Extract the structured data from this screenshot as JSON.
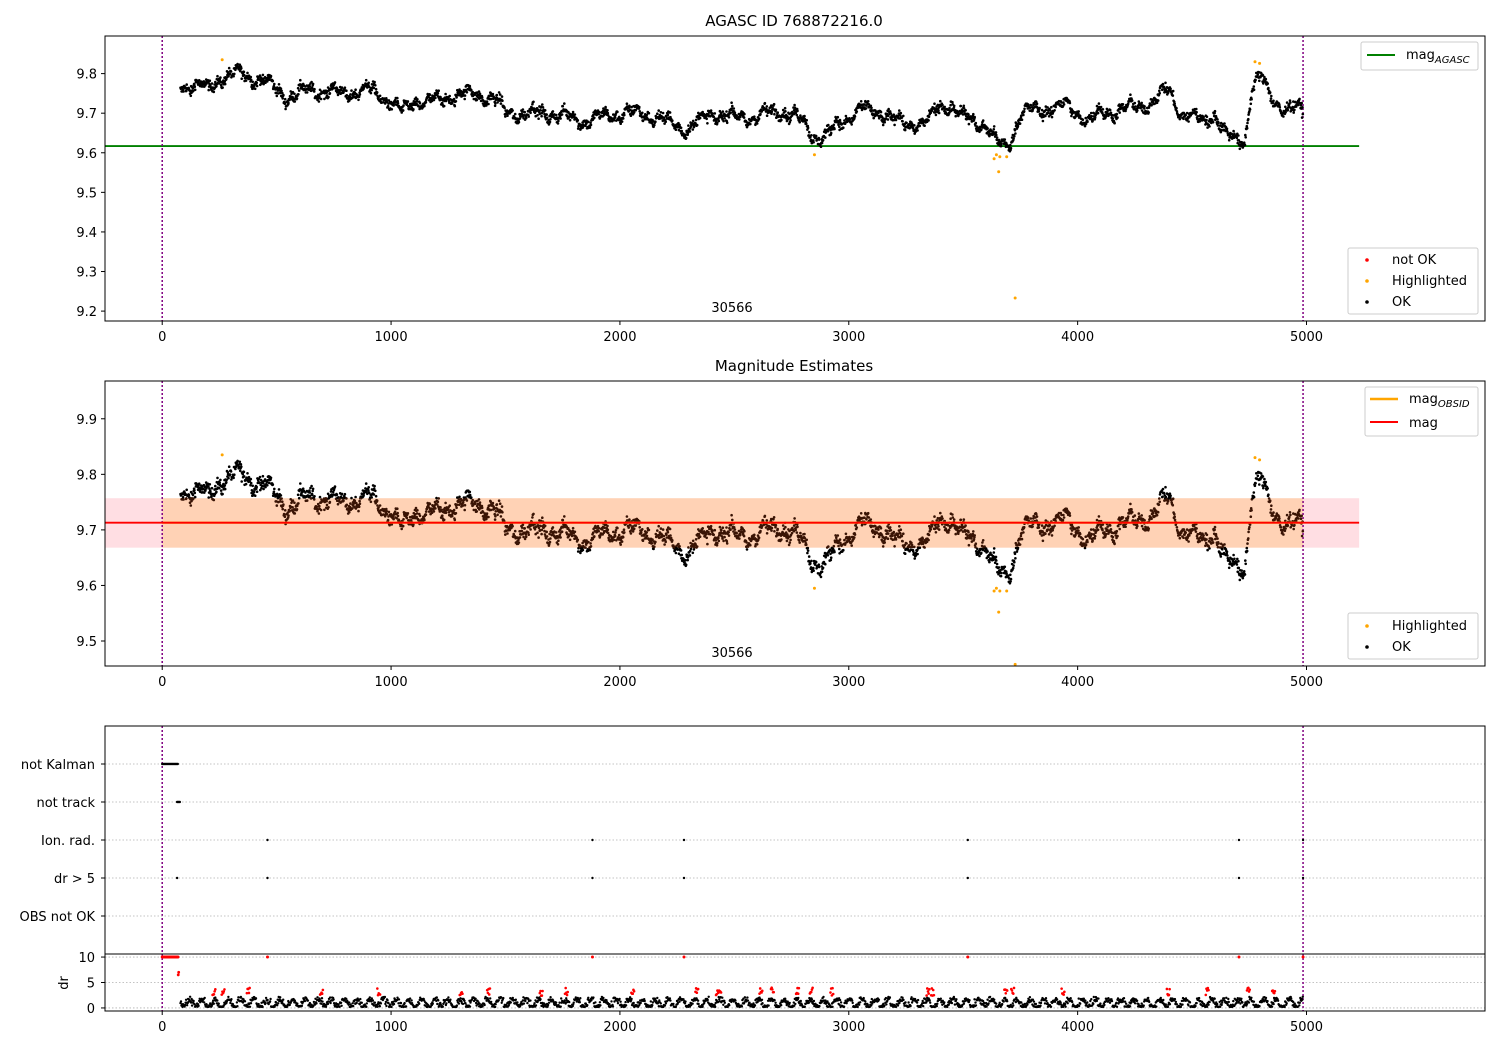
{
  "chart_data": [
    {
      "type": "scatter",
      "title": "AGASC ID 768872216.0",
      "xlim": [
        -250,
        5780
      ],
      "ylim": [
        9.175,
        9.895
      ],
      "xticks": [
        0,
        1000,
        2000,
        3000,
        4000,
        5000
      ],
      "yticks": [
        9.2,
        9.3,
        9.4,
        9.5,
        9.6,
        9.7,
        9.8
      ],
      "grid": false,
      "obsid_label": "30566",
      "vlines": [
        0,
        4985
      ],
      "hline": {
        "name": "mag_AGASC",
        "label_main": "mag",
        "label_sub": "AGASC",
        "value": 9.617,
        "xrange": [
          -250,
          5230
        ],
        "color": "#008000"
      },
      "legend_lines_placement": "top-right",
      "legend_points_placement": "bottom-right",
      "legend_points": [
        {
          "label": "not OK",
          "color": "#ff0000"
        },
        {
          "label": "Highlighted",
          "color": "#ffa500"
        },
        {
          "label": "OK",
          "color": "#000000"
        }
      ],
      "trend": [
        [
          80,
          9.77
        ],
        [
          150,
          9.77
        ],
        [
          200,
          9.76
        ],
        [
          250,
          9.79
        ],
        [
          350,
          9.8
        ],
        [
          450,
          9.78
        ],
        [
          550,
          9.74
        ],
        [
          650,
          9.76
        ],
        [
          800,
          9.75
        ],
        [
          900,
          9.76
        ],
        [
          1000,
          9.73
        ],
        [
          1050,
          9.7
        ],
        [
          1100,
          9.73
        ],
        [
          1200,
          9.73
        ],
        [
          1300,
          9.75
        ],
        [
          1450,
          9.74
        ],
        [
          1500,
          9.7
        ],
        [
          1700,
          9.7
        ],
        [
          1850,
          9.68
        ],
        [
          2000,
          9.7
        ],
        [
          2100,
          9.7
        ],
        [
          2200,
          9.68
        ],
        [
          2300,
          9.66
        ],
        [
          2400,
          9.7
        ],
        [
          2500,
          9.69
        ],
        [
          2600,
          9.69
        ],
        [
          2700,
          9.71
        ],
        [
          2800,
          9.68
        ],
        [
          2850,
          9.64
        ],
        [
          2900,
          9.64
        ],
        [
          2950,
          9.67
        ],
        [
          3050,
          9.71
        ],
        [
          3150,
          9.7
        ],
        [
          3250,
          9.67
        ],
        [
          3350,
          9.68
        ],
        [
          3400,
          9.72
        ],
        [
          3450,
          9.72
        ],
        [
          3500,
          9.69
        ],
        [
          3600,
          9.67
        ],
        [
          3650,
          9.62
        ],
        [
          3700,
          9.62
        ],
        [
          3750,
          9.7
        ],
        [
          3850,
          9.71
        ],
        [
          3950,
          9.72
        ],
        [
          4050,
          9.68
        ],
        [
          4100,
          9.7
        ],
        [
          4200,
          9.71
        ],
        [
          4300,
          9.72
        ],
        [
          4400,
          9.76
        ],
        [
          4450,
          9.7
        ],
        [
          4550,
          9.68
        ],
        [
          4600,
          9.7
        ],
        [
          4650,
          9.64
        ],
        [
          4730,
          9.63
        ],
        [
          4760,
          9.76
        ],
        [
          4800,
          9.79
        ],
        [
          4850,
          9.74
        ],
        [
          4900,
          9.71
        ],
        [
          4985,
          9.71
        ]
      ],
      "highlighted": [
        [
          262,
          9.835
        ],
        [
          2850,
          9.595
        ],
        [
          3635,
          9.585
        ],
        [
          3645,
          9.595
        ],
        [
          3660,
          9.59
        ],
        [
          3690,
          9.59
        ],
        [
          3655,
          9.552
        ],
        [
          3727,
          9.233
        ],
        [
          4775,
          9.83
        ],
        [
          4795,
          9.826
        ]
      ],
      "not_ok": []
    },
    {
      "type": "scatter",
      "title": "Magnitude Estimates",
      "xlim": [
        -250,
        5780
      ],
      "ylim": [
        9.455,
        9.968
      ],
      "xticks": [
        0,
        1000,
        2000,
        3000,
        4000,
        5000
      ],
      "yticks": [
        9.5,
        9.6,
        9.7,
        9.8,
        9.9
      ],
      "grid": false,
      "obsid_label": "30566",
      "vlines": [
        0,
        4985
      ],
      "band": {
        "low": 9.668,
        "high": 9.757,
        "xrange": [
          -250,
          5230
        ]
      },
      "lines": [
        {
          "name": "mag_OBSID",
          "label_main": "mag",
          "label_sub": "OBSID",
          "value": 9.713,
          "xrange": [
            0,
            4985
          ],
          "color": "#ffa500"
        },
        {
          "name": "mag",
          "label_main": "mag",
          "label_sub": "",
          "value": 9.713,
          "xrange": [
            -250,
            5230
          ],
          "color": "#ff0000"
        }
      ],
      "legend_lines_placement": "top-right",
      "legend_points_placement": "bottom-right",
      "legend_points": [
        {
          "label": "Highlighted",
          "color": "#ffa500"
        },
        {
          "label": "OK",
          "color": "#000000"
        }
      ],
      "highlighted": [
        [
          262,
          9.835
        ],
        [
          2850,
          9.595
        ],
        [
          3635,
          9.59
        ],
        [
          3645,
          9.595
        ],
        [
          3660,
          9.59
        ],
        [
          3690,
          9.59
        ],
        [
          3655,
          9.552
        ],
        [
          3727,
          9.458
        ],
        [
          4775,
          9.83
        ],
        [
          4795,
          9.826
        ]
      ]
    },
    {
      "type": "scatter",
      "title": "",
      "xlim": [
        -250,
        5780
      ],
      "categories": [
        "not Kalman",
        "not track",
        "Ion. rad.",
        "dr > 5",
        "OBS not OK"
      ],
      "grid": "horizontal dotted",
      "vlines": [
        0,
        4985
      ],
      "flags": {
        "not Kalman": [
          [
            0,
            70
          ]
        ],
        "not track": [
          [
            65,
            80
          ]
        ],
        "Ion. rad.": [
          [
            460
          ],
          [
            1880
          ],
          [
            2280
          ],
          [
            3520
          ],
          [
            4705
          ],
          [
            4985
          ]
        ],
        "dr > 5": [
          [
            65
          ],
          [
            460
          ],
          [
            1880
          ],
          [
            2280
          ],
          [
            3520
          ],
          [
            4705
          ],
          [
            4985
          ]
        ],
        "OBS not OK": []
      }
    },
    {
      "type": "scatter",
      "title": "",
      "ylabel": "dr",
      "xlim": [
        -250,
        5780
      ],
      "ylim": [
        -0.6,
        10.6
      ],
      "yticks": [
        0,
        5,
        10
      ],
      "xticks": [
        0,
        1000,
        2000,
        3000,
        4000,
        5000
      ],
      "grid": "horizontal dotted",
      "vlines": [
        0,
        4985
      ],
      "red_at_ten": [
        [
          0,
          70
        ],
        [
          460
        ],
        [
          1880
        ],
        [
          2280
        ],
        [
          3520
        ],
        [
          4705
        ],
        [
          4985
        ]
      ],
      "red_extra": [
        [
          70,
          6.5
        ],
        [
          72,
          7.0
        ]
      ],
      "dr_typical": [
        0.2,
        2.2
      ],
      "red_excursions": [
        220,
        260,
        370,
        690,
        940,
        1300,
        1420,
        1650,
        1760,
        2050,
        2330,
        2420,
        2430,
        2610,
        2660,
        2770,
        2830,
        2920,
        3340,
        3360,
        3680,
        3710,
        3930,
        4390,
        4560,
        4740,
        4850
      ]
    }
  ]
}
